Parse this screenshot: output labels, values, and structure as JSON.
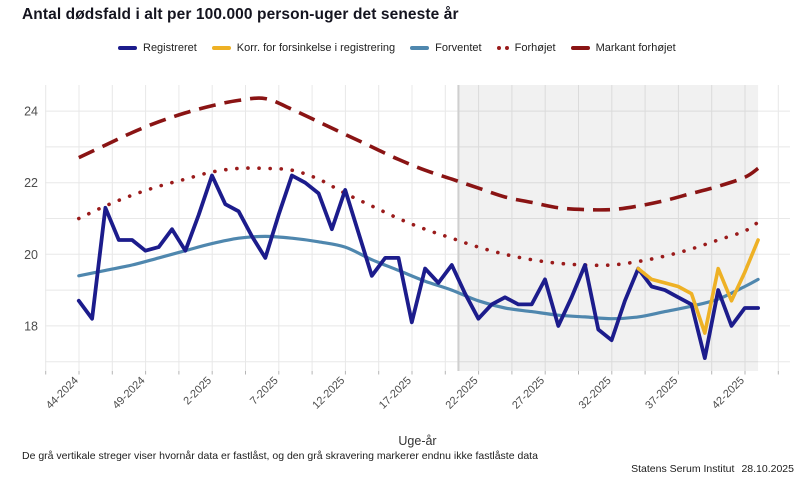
{
  "title": "Antal dødsfald i alt per 100.000 person-uger det seneste år",
  "x_axis_title": "Uge-år",
  "footnote": "De grå vertikale streger viser hvornår data er fastlåst, og den grå skravering markerer endnu ikke fastlåste data",
  "source": "Statens Serum Institut",
  "date": "28.10.2025",
  "colors": {
    "registered": "#1c1c8c",
    "corrected": "#eeb125",
    "expected": "#4f87ae",
    "elevated": "#9a1b1b",
    "markedly_elevated": "#8a1414",
    "gridline": "#e8e8e8",
    "shading": "rgba(0,0,0,0.055)",
    "locked_line": "#cfcfcf",
    "tick_text": "#4d4d4d"
  },
  "chart_data": {
    "type": "line",
    "title": "Antal dødsfald i alt per 100.000 person-uger det seneste år",
    "xlabel": "Uge-år",
    "ylabel": "",
    "ylim": [
      16.8,
      24.8
    ],
    "y_ticks": [
      18,
      20,
      22,
      24
    ],
    "x_tick_labels": [
      "44-2024",
      "49-2024",
      "2-2025",
      "7-2025",
      "12-2025",
      "17-2025",
      "22-2025",
      "27-2025",
      "32-2025",
      "37-2025",
      "42-2025"
    ],
    "x_tick_week_indices": [
      0,
      5,
      10,
      15,
      20,
      25,
      30,
      35,
      40,
      45,
      50
    ],
    "grid": true,
    "legend_position": "top",
    "weeks": [
      "44-2024",
      "45-2024",
      "46-2024",
      "47-2024",
      "48-2024",
      "49-2024",
      "50-2024",
      "51-2024",
      "52-2024",
      "1-2025",
      "2-2025",
      "3-2025",
      "4-2025",
      "5-2025",
      "6-2025",
      "7-2025",
      "8-2025",
      "9-2025",
      "10-2025",
      "11-2025",
      "12-2025",
      "13-2025",
      "14-2025",
      "15-2025",
      "16-2025",
      "17-2025",
      "18-2025",
      "19-2025",
      "20-2025",
      "21-2025",
      "22-2025",
      "23-2025",
      "24-2025",
      "25-2025",
      "26-2025",
      "27-2025",
      "28-2025",
      "29-2025",
      "30-2025",
      "31-2025",
      "32-2025",
      "33-2025",
      "34-2025",
      "35-2025",
      "36-2025",
      "37-2025",
      "38-2025",
      "39-2025",
      "40-2025",
      "41-2025",
      "42-2025",
      "43-2025"
    ],
    "shaded_region": {
      "from_week_index": 28.5,
      "to_week_index": 51,
      "meaning": "endnu ikke fastlåste data"
    },
    "locked_boundary_week_index": 28.5,
    "series": [
      {
        "id": "registreret",
        "name": "Registreret",
        "color": "#1c1c8c",
        "style": "solid",
        "width": 3.8,
        "start_week_index": 0,
        "values": [
          18.7,
          18.2,
          21.3,
          20.4,
          20.4,
          20.1,
          20.2,
          20.7,
          20.1,
          21.1,
          22.2,
          21.4,
          21.2,
          20.5,
          19.9,
          21.1,
          22.2,
          22.0,
          21.7,
          20.7,
          21.8,
          20.6,
          19.4,
          19.9,
          19.9,
          18.1,
          19.6,
          19.2,
          19.7,
          18.9,
          18.2,
          18.6,
          18.8,
          18.6,
          18.6,
          19.3,
          18.0,
          18.8,
          19.7,
          17.9,
          17.6,
          18.7,
          19.6,
          19.1,
          19.0,
          18.8,
          18.6,
          17.1,
          19.0,
          18.0,
          18.5,
          18.5
        ]
      },
      {
        "id": "korrigeret",
        "name": "Korr. for forsinkelse i registrering",
        "color": "#eeb125",
        "style": "solid",
        "width": 3.6,
        "start_week_index": 42,
        "values": [
          19.6,
          19.3,
          19.2,
          19.1,
          18.9,
          17.8,
          19.6,
          18.7,
          19.5,
          20.4
        ]
      },
      {
        "id": "forventet",
        "name": "Forventet",
        "color": "#4f87ae",
        "style": "solid",
        "width": 3.2,
        "smooth": true,
        "points": [
          [
            0,
            19.4
          ],
          [
            2,
            19.55
          ],
          [
            4,
            19.7
          ],
          [
            6,
            19.9
          ],
          [
            8,
            20.1
          ],
          [
            10,
            20.3
          ],
          [
            12,
            20.45
          ],
          [
            14,
            20.5
          ],
          [
            16,
            20.45
          ],
          [
            18,
            20.35
          ],
          [
            20,
            20.2
          ],
          [
            22,
            19.85
          ],
          [
            24,
            19.55
          ],
          [
            26,
            19.25
          ],
          [
            28,
            19.0
          ],
          [
            30,
            18.7
          ],
          [
            32,
            18.5
          ],
          [
            34,
            18.4
          ],
          [
            36,
            18.3
          ],
          [
            38,
            18.25
          ],
          [
            40,
            18.2
          ],
          [
            42,
            18.25
          ],
          [
            44,
            18.4
          ],
          [
            46,
            18.55
          ],
          [
            48,
            18.75
          ],
          [
            50,
            19.1
          ],
          [
            51,
            19.3
          ]
        ]
      },
      {
        "id": "forhoejet",
        "name": "Forhøjet",
        "color": "#9a1b1b",
        "style": "dotted",
        "width": 3.6,
        "smooth": true,
        "points": [
          [
            0,
            21.0
          ],
          [
            2,
            21.35
          ],
          [
            4,
            21.65
          ],
          [
            6,
            21.9
          ],
          [
            8,
            22.1
          ],
          [
            10,
            22.3
          ],
          [
            12,
            22.4
          ],
          [
            14,
            22.4
          ],
          [
            16,
            22.35
          ],
          [
            18,
            22.1
          ],
          [
            20,
            21.7
          ],
          [
            22,
            21.35
          ],
          [
            24,
            21.0
          ],
          [
            26,
            20.7
          ],
          [
            28,
            20.45
          ],
          [
            30,
            20.2
          ],
          [
            32,
            20.0
          ],
          [
            34,
            19.85
          ],
          [
            36,
            19.75
          ],
          [
            38,
            19.7
          ],
          [
            40,
            19.7
          ],
          [
            42,
            19.8
          ],
          [
            44,
            19.95
          ],
          [
            46,
            20.15
          ],
          [
            48,
            20.4
          ],
          [
            50,
            20.65
          ],
          [
            51,
            20.9
          ]
        ]
      },
      {
        "id": "markant-forhoejet",
        "name": "Markant forhøjet",
        "color": "#8a1414",
        "style": "dashed",
        "width": 3.6,
        "smooth": true,
        "points": [
          [
            0,
            22.7
          ],
          [
            2,
            23.05
          ],
          [
            4,
            23.4
          ],
          [
            6,
            23.7
          ],
          [
            8,
            23.95
          ],
          [
            10,
            24.15
          ],
          [
            12,
            24.3
          ],
          [
            14,
            24.35
          ],
          [
            16,
            24.05
          ],
          [
            18,
            23.7
          ],
          [
            20,
            23.35
          ],
          [
            22,
            23.0
          ],
          [
            24,
            22.65
          ],
          [
            26,
            22.35
          ],
          [
            28,
            22.1
          ],
          [
            30,
            21.85
          ],
          [
            32,
            21.6
          ],
          [
            34,
            21.45
          ],
          [
            36,
            21.3
          ],
          [
            38,
            21.25
          ],
          [
            40,
            21.25
          ],
          [
            42,
            21.35
          ],
          [
            44,
            21.5
          ],
          [
            46,
            21.7
          ],
          [
            48,
            21.9
          ],
          [
            50,
            22.15
          ],
          [
            51,
            22.4
          ]
        ]
      }
    ]
  }
}
